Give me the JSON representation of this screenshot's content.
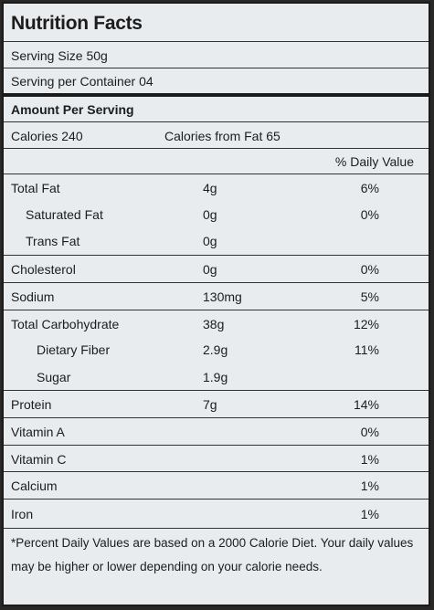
{
  "label": {
    "title": "Nutrition Facts",
    "serving_size": "Serving Size 50g",
    "servings_per_container": "Serving per Container  04",
    "amount_per_serving": "Amount Per Serving",
    "calories": "Calories  240",
    "calories_from_fat": "Calories from Fat  65",
    "daily_value_header": "% Daily Value",
    "nutrients": [
      {
        "name": "Total Fat",
        "amount": "4g",
        "dv": "6%"
      },
      {
        "name": "Saturated Fat",
        "amount": "0g",
        "dv": "0%"
      },
      {
        "name": "Trans Fat",
        "amount": "0g",
        "dv": ""
      },
      {
        "name": "Cholesterol",
        "amount": "0g",
        "dv": "0%"
      },
      {
        "name": "Sodium",
        "amount": "130mg",
        "dv": "5%"
      },
      {
        "name": "Total Carbohydrate",
        "amount": "38g",
        "dv": "12%"
      },
      {
        "name": "Dietary Fiber",
        "amount": "2.9g",
        "dv": "11%"
      },
      {
        "name": "Sugar",
        "amount": "1.9g",
        "dv": ""
      },
      {
        "name": "Protein",
        "amount": "7g",
        "dv": "14%"
      },
      {
        "name": "Vitamin A",
        "amount": "",
        "dv": "0%"
      },
      {
        "name": "Vitamin C",
        "amount": "",
        "dv": "1%"
      },
      {
        "name": "Calcium",
        "amount": "",
        "dv": "1%"
      },
      {
        "name": "Iron",
        "amount": "",
        "dv": "1%"
      }
    ],
    "footnote": "*Percent Daily Values are based on a 2000 Calorie Diet. Your daily values may be higher or lower depending on your calorie needs."
  }
}
